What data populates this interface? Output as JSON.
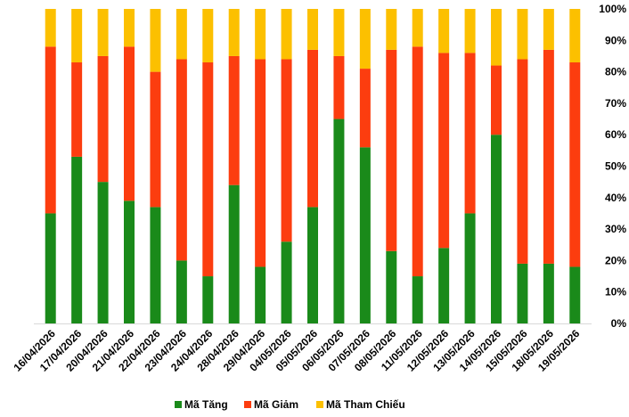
{
  "chart_data": {
    "type": "bar",
    "stacked": true,
    "percent": true,
    "title": "",
    "xlabel": "",
    "ylabel": "",
    "ylim": [
      0,
      100
    ],
    "y_ticks": [
      "0%",
      "10%",
      "20%",
      "30%",
      "40%",
      "50%",
      "60%",
      "70%",
      "80%",
      "90%",
      "100%"
    ],
    "y_axis_side": "right",
    "grid": false,
    "legend_position": "bottom",
    "categories": [
      "16/04/2026",
      "17/04/2026",
      "20/04/2026",
      "21/04/2026",
      "22/04/2026",
      "23/04/2026",
      "24/04/2026",
      "28/04/2026",
      "29/04/2026",
      "04/05/2026",
      "05/05/2026",
      "06/05/2026",
      "07/05/2026",
      "08/05/2026",
      "11/05/2026",
      "12/05/2026",
      "13/05/2026",
      "14/05/2026",
      "15/05/2026",
      "18/05/2026",
      "19/05/2026"
    ],
    "series": [
      {
        "name": "Mã Tăng",
        "color": "#1a8a1a",
        "values": [
          35,
          53,
          45,
          39,
          37,
          20,
          15,
          44,
          18,
          26,
          37,
          65,
          56,
          23,
          15,
          24,
          35,
          60,
          19,
          19,
          18
        ]
      },
      {
        "name": "Mã Giảm",
        "color": "#fc3d0f",
        "values": [
          53,
          30,
          40,
          49,
          43,
          64,
          68,
          41,
          66,
          58,
          50,
          20,
          25,
          64,
          73,
          62,
          51,
          22,
          65,
          68,
          65
        ]
      },
      {
        "name": "Mã Tham Chiếu",
        "color": "#fcc000",
        "values": [
          12,
          17,
          15,
          12,
          20,
          16,
          17,
          15,
          16,
          16,
          13,
          15,
          19,
          13,
          12,
          14,
          14,
          18,
          16,
          13,
          17
        ]
      }
    ]
  }
}
